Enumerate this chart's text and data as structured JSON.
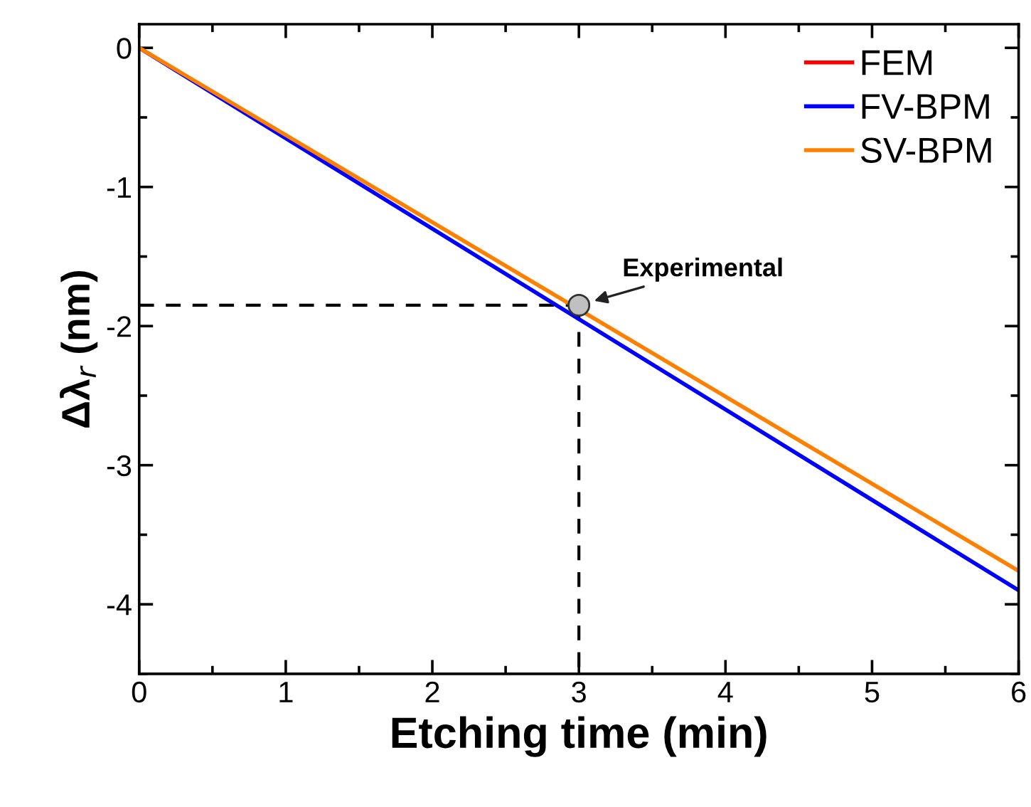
{
  "chart_data": {
    "type": "line",
    "xlabel": "Etching time (min)",
    "ylabel": "Δλ$_{r}$ (nm)",
    "xlim": [
      0,
      6
    ],
    "ylim": [
      -4.5,
      0.17
    ],
    "xticks": [
      0,
      1,
      2,
      3,
      4,
      5,
      6
    ],
    "yticks": [
      0,
      -1,
      -2,
      -3,
      -4
    ],
    "legend": "top right",
    "grid": false,
    "x": [
      0,
      6
    ],
    "series": [
      {
        "name": "FEM",
        "color": "#ff0000",
        "values": [
          null,
          null
        ]
      },
      {
        "name": "FV-BPM",
        "color": "#0000ff",
        "values": [
          0,
          -3.9
        ]
      },
      {
        "name": "SV-BPM",
        "color": "#ff8000",
        "values": [
          0,
          -3.76
        ]
      },
      {
        "type": "scatter",
        "color": "#c0c0c0",
        "x": [
          3
        ],
        "values": [
          -1.85
        ],
        "marker": "circle"
      }
    ],
    "ref_lines": [
      {
        "axis": "y",
        "value": -1.85,
        "color": "#000000",
        "line_style": "dashed"
      },
      {
        "axis": "x",
        "value": 3,
        "color": "#000000",
        "line_style": "dashed"
      }
    ],
    "annotations": [
      {
        "text": "Experimental",
        "x": 3,
        "y": -1.85
      }
    ]
  }
}
